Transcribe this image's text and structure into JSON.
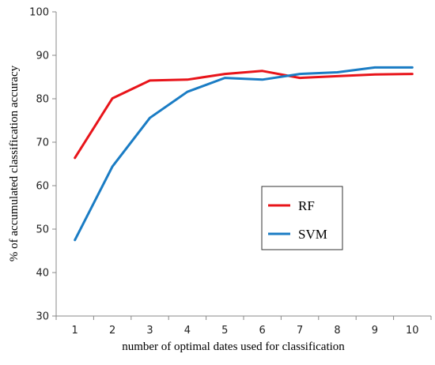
{
  "chart_data": {
    "type": "line",
    "title": "",
    "xlabel": "number of optimal dates used for classification",
    "ylabel": "% of accumulated classification accuracy",
    "x": [
      1,
      2,
      3,
      4,
      5,
      6,
      7,
      8,
      9,
      10
    ],
    "xlim": [
      0.5,
      10.5
    ],
    "ylim": [
      30,
      100
    ],
    "yticks": [
      30,
      40,
      50,
      60,
      70,
      80,
      90,
      100
    ],
    "grid": false,
    "legend_position": "center-right",
    "series": [
      {
        "name": "RF",
        "color": "#e8141a",
        "values": [
          66.4,
          80.1,
          84.2,
          84.4,
          85.7,
          86.4,
          84.8,
          85.2,
          85.6,
          85.7
        ]
      },
      {
        "name": "SVM",
        "color": "#1a7cc4",
        "values": [
          47.5,
          64.4,
          75.6,
          81.6,
          84.8,
          84.4,
          85.7,
          86.1,
          87.2,
          87.2
        ]
      }
    ]
  }
}
